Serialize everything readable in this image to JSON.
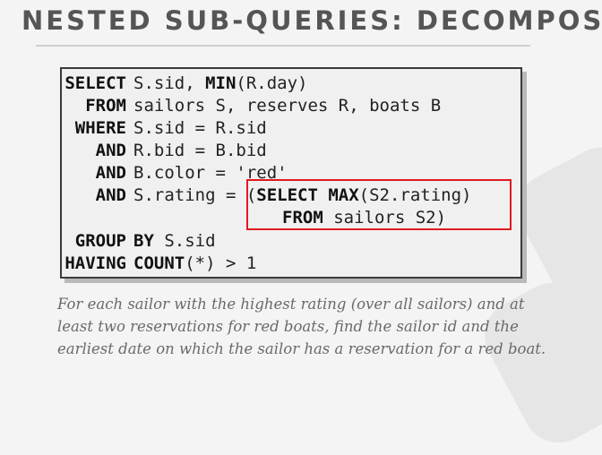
{
  "slide": {
    "title": "NESTED SUB-QUERIES: DECOMPOSE"
  },
  "query": {
    "lines": [
      {
        "kw": "SELECT",
        "rest": [
          "S.sid, ",
          "MIN",
          "(R.day)"
        ]
      },
      {
        "kw": "FROM",
        "rest": [
          "sailors S, reserves R, boats B"
        ]
      },
      {
        "kw": "WHERE",
        "rest": [
          "S.sid = R.sid"
        ]
      },
      {
        "kw": "AND",
        "rest": [
          "R.bid = B.bid"
        ]
      },
      {
        "kw": "AND",
        "rest": [
          "B.color = 'red'"
        ]
      },
      {
        "kw": "AND",
        "rest": [
          "S.rating = (",
          "SELECT MAX",
          "(S2.rating)"
        ]
      },
      {
        "kw": "",
        "rest": [
          "FROM",
          " sailors S2)"
        ]
      },
      {
        "kw": "GROUP",
        "rest": [
          "BY",
          " S.sid"
        ]
      },
      {
        "kw": "HAVING",
        "rest": [
          "COUNT",
          "(*) > 1"
        ]
      }
    ]
  },
  "caption": {
    "lines": [
      "For each sailor with the highest rating (over all sailors) and at",
      "least two reservations for red boats, find the sailor id and the",
      "earliest date on which the sailor has a reservation for a red boat."
    ]
  },
  "colors": {
    "highlight": "#e0191f",
    "title": "#555555"
  }
}
